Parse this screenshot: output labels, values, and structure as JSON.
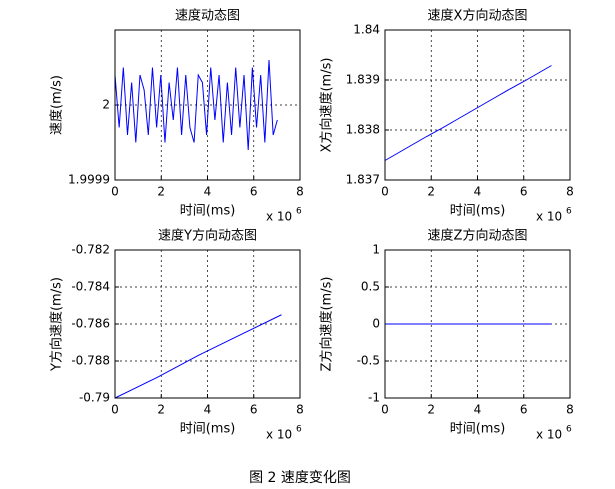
{
  "caption": "图 2  速度变化图",
  "chart_data": [
    {
      "type": "line",
      "title": "速度动态图",
      "xlabel": "时间(ms)",
      "ylabel": "速度(m/s)",
      "x_scale_label": "x 10",
      "x_scale_exponent": 6,
      "grid": true,
      "xlim": [
        0,
        8
      ],
      "xticks": [
        0,
        2,
        4,
        6,
        8
      ],
      "ylim": [
        1.9999,
        2.0001
      ],
      "yticks": [
        1.9999,
        2
      ],
      "x": [
        0,
        0.18,
        0.36,
        0.54,
        0.72,
        0.9,
        1.08,
        1.26,
        1.44,
        1.62,
        1.8,
        1.98,
        2.16,
        2.34,
        2.52,
        2.7,
        2.88,
        3.06,
        3.24,
        3.42,
        3.6,
        3.78,
        3.96,
        4.14,
        4.32,
        4.5,
        4.68,
        4.86,
        5.04,
        5.22,
        5.4,
        5.58,
        5.76,
        5.94,
        6.12,
        6.3,
        6.48,
        6.66,
        6.84,
        7.02
      ],
      "series": [
        {
          "color": "#0000ff",
          "values": [
            2.00004,
            1.99997,
            2.00005,
            1.99996,
            2.00003,
            1.99995,
            2.00004,
            2.00002,
            1.99996,
            2.00005,
            1.99997,
            2.00004,
            1.99995,
            2.00003,
            1.99998,
            2.00005,
            1.99996,
            2.00004,
            1.99997,
            1.99995,
            2.00004,
            2.00003,
            1.99996,
            2.00005,
            1.99998,
            2.00004,
            1.99995,
            2.00003,
            1.99996,
            2.00005,
            1.99997,
            2.00004,
            1.99994,
            2.00005,
            1.99997,
            2.00004,
            1.99995,
            2.00006,
            1.99996,
            1.99998
          ]
        }
      ]
    },
    {
      "type": "line",
      "title": "速度X方向动态图",
      "xlabel": "时间(ms)",
      "ylabel": "X方向速度(m/s)",
      "x_scale_label": "x 10",
      "x_scale_exponent": 6,
      "grid": true,
      "xlim": [
        0,
        8
      ],
      "xticks": [
        0,
        2,
        4,
        6,
        8
      ],
      "ylim": [
        1.837,
        1.84
      ],
      "yticks": [
        1.837,
        1.838,
        1.839,
        1.84
      ],
      "x": [
        0,
        0.6,
        1.2,
        1.8,
        2.4,
        3,
        3.6,
        4.2,
        4.8,
        5.4,
        6,
        6.6,
        7.2
      ],
      "series": [
        {
          "color": "#0000ff",
          "values": [
            1.83739,
            1.83755,
            1.83771,
            1.83787,
            1.83802,
            1.83818,
            1.83834,
            1.8385,
            1.83866,
            1.83882,
            1.83897,
            1.83913,
            1.83929
          ]
        }
      ]
    },
    {
      "type": "line",
      "title": "速度Y方向动态图",
      "xlabel": "时间(ms)",
      "ylabel": "Y方向速度(m/s)",
      "x_scale_label": "x 10",
      "x_scale_exponent": 6,
      "grid": true,
      "xlim": [
        0,
        8
      ],
      "xticks": [
        0,
        2,
        4,
        6,
        8
      ],
      "ylim": [
        -0.79,
        -0.782
      ],
      "yticks": [
        -0.79,
        -0.788,
        -0.786,
        -0.784,
        -0.782
      ],
      "x": [
        0,
        1.8,
        3.6,
        5.4,
        7.2
      ],
      "series": [
        {
          "color": "#0000ff",
          "values": [
            -0.79,
            -0.7889,
            -0.7877,
            -0.7866,
            -0.7855
          ]
        }
      ]
    },
    {
      "type": "line",
      "title": "速度Z方向动态图",
      "xlabel": "时间(ms)",
      "ylabel": "Z方向速度(m/s)",
      "x_scale_label": "x 10",
      "x_scale_exponent": 6,
      "grid": true,
      "xlim": [
        0,
        8
      ],
      "xticks": [
        0,
        2,
        4,
        6,
        8
      ],
      "ylim": [
        -1,
        1
      ],
      "yticks": [
        -1,
        -0.5,
        0,
        0.5,
        1
      ],
      "x": [
        0,
        7.2
      ],
      "series": [
        {
          "color": "#0000ff",
          "values": [
            0,
            0
          ]
        }
      ]
    }
  ]
}
